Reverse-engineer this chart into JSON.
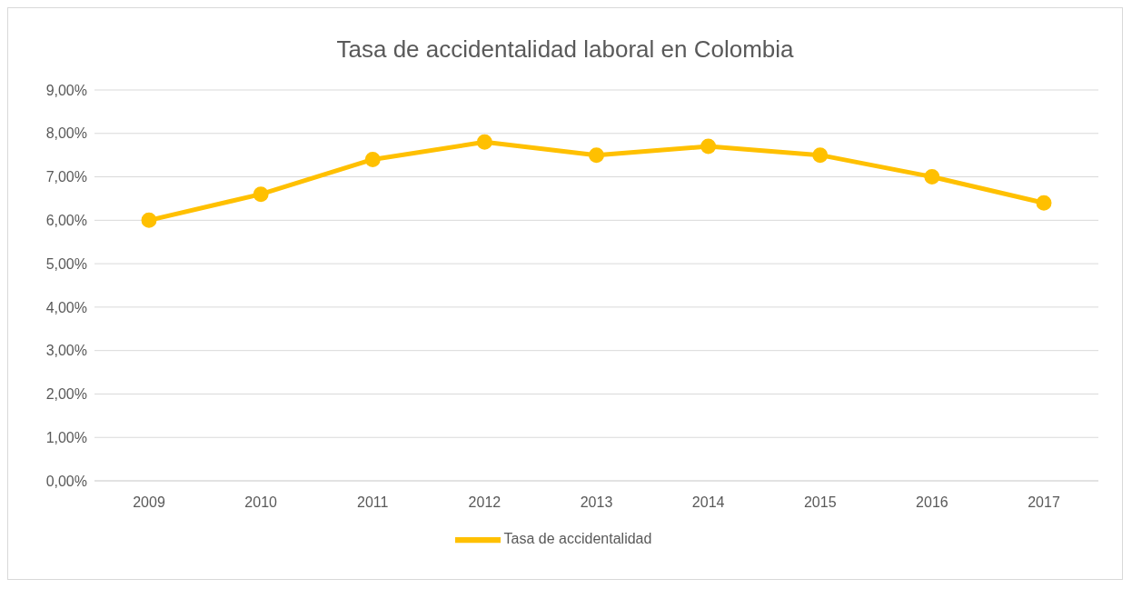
{
  "chart_data": {
    "type": "line",
    "title": "Tasa de accidentalidad laboral en Colombia",
    "categories": [
      "2009",
      "2010",
      "2011",
      "2012",
      "2013",
      "2014",
      "2015",
      "2016",
      "2017"
    ],
    "series": [
      {
        "name": "Tasa de accidentalidad",
        "color": "#ffc000",
        "values": [
          6.0,
          6.6,
          7.4,
          7.8,
          7.5,
          7.7,
          7.5,
          7.0,
          6.4
        ]
      }
    ],
    "ylim": [
      0,
      9
    ],
    "yticks": [
      {
        "value": 0,
        "label": "0,00%"
      },
      {
        "value": 1,
        "label": "1,00%"
      },
      {
        "value": 2,
        "label": "2,00%"
      },
      {
        "value": 3,
        "label": "3,00%"
      },
      {
        "value": 4,
        "label": "4,00%"
      },
      {
        "value": 5,
        "label": "5,00%"
      },
      {
        "value": 6,
        "label": "6,00%"
      },
      {
        "value": 7,
        "label": "7,00%"
      },
      {
        "value": 8,
        "label": "8,00%"
      },
      {
        "value": 9,
        "label": "9,00%"
      }
    ],
    "grid": "y",
    "legend": "bottom",
    "marker": "circle",
    "line_style": "solid"
  }
}
